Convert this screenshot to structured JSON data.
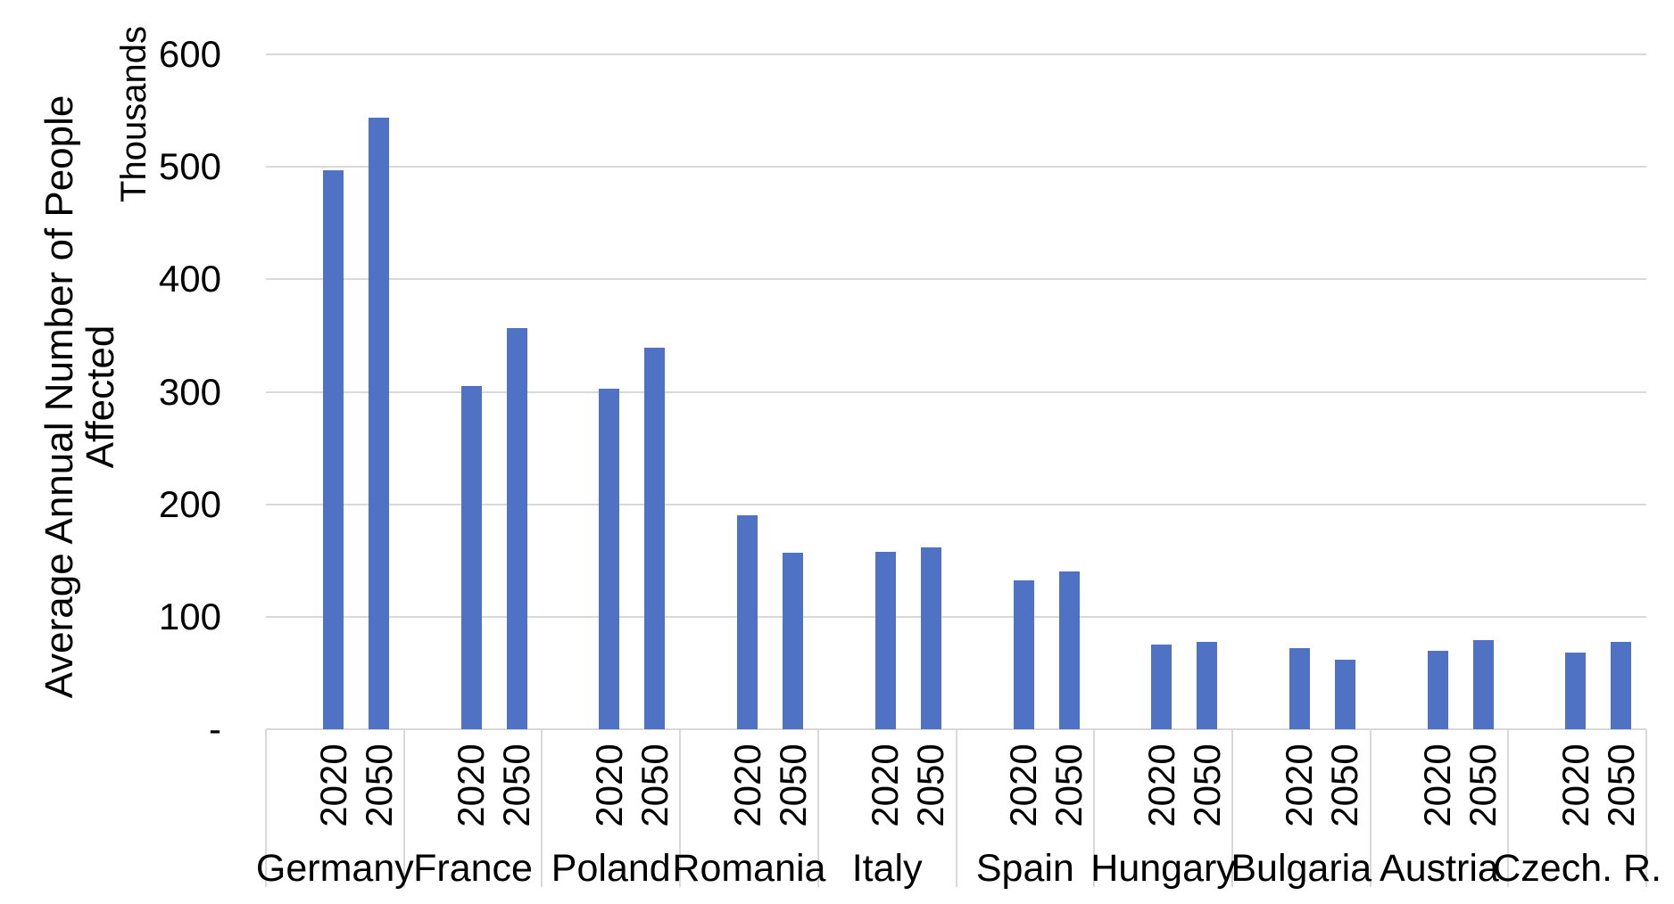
{
  "chart_data": {
    "type": "bar",
    "title": "",
    "ylabel_line1": "Average Annual Number of People",
    "ylabel_line2": "Affected",
    "units_label": "Thousands",
    "categories": [
      "Germany",
      "France",
      "Poland",
      "Romania",
      "Italy",
      "Spain",
      "Hungary",
      "Bulgaria",
      "Austria",
      "Czech. R."
    ],
    "series": [
      {
        "name": "2020",
        "values": [
          497,
          305,
          303,
          190,
          158,
          132,
          75,
          72,
          70,
          68
        ]
      },
      {
        "name": "2050",
        "values": [
          544,
          357,
          339,
          157,
          162,
          140,
          78,
          62,
          79,
          78
        ]
      }
    ],
    "ylim": [
      0,
      600
    ],
    "yticks": [
      {
        "value": 0,
        "label": "-"
      },
      {
        "value": 100,
        "label": "100"
      },
      {
        "value": 200,
        "label": "200"
      },
      {
        "value": 300,
        "label": "300"
      },
      {
        "value": 400,
        "label": "400"
      },
      {
        "value": 500,
        "label": "500"
      },
      {
        "value": 600,
        "label": "600"
      }
    ],
    "grid": "horizontal",
    "legend": "none",
    "bar_color": "#4F72C4",
    "gridline_color": "#D9D9D9",
    "text_color": "#000000"
  }
}
